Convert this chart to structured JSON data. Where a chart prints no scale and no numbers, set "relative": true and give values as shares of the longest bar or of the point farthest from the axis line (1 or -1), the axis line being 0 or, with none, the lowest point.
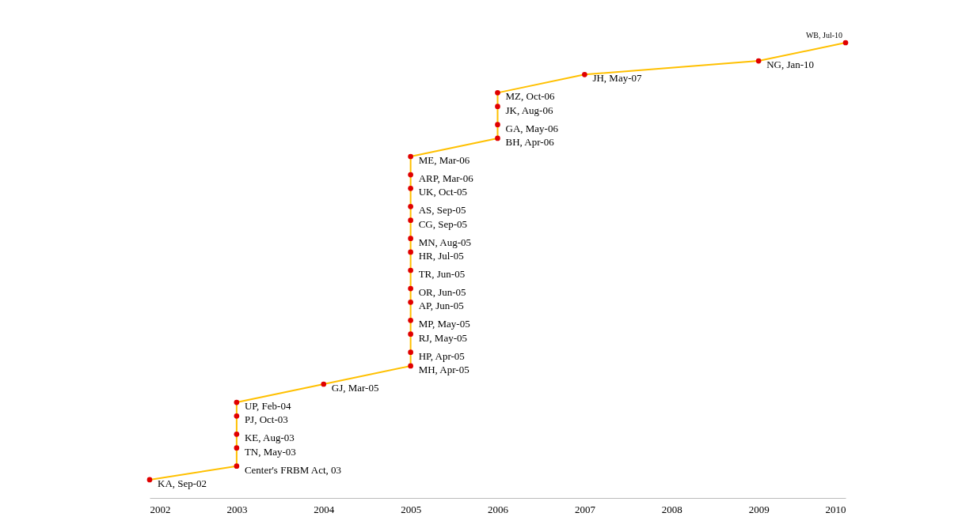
{
  "chart_data": {
    "type": "line",
    "relative": true,
    "xlim": [
      2002,
      2010
    ],
    "xticks": [
      2002,
      2003,
      2004,
      2005,
      2006,
      2007,
      2008,
      2009,
      2010
    ],
    "series": [
      {
        "color": "#ffc000",
        "marker": "none",
        "x": [
          2002,
          2003,
          2003,
          2003,
          2003,
          2003,
          2004,
          2005,
          2005,
          2005,
          2005,
          2005,
          2005,
          2005,
          2005,
          2005,
          2005,
          2005,
          2005,
          2005,
          2005,
          2006,
          2006,
          2006,
          2006,
          2007,
          2009,
          2010
        ],
        "values": [
          0.04,
          0.07,
          0.11,
          0.14,
          0.18,
          0.21,
          0.25,
          0.29,
          0.32,
          0.36,
          0.39,
          0.43,
          0.46,
          0.5,
          0.54,
          0.57,
          0.61,
          0.64,
          0.68,
          0.71,
          0.75,
          0.79,
          0.82,
          0.86,
          0.89,
          0.93,
          0.96,
          1
        ]
      },
      {
        "type": "scatter",
        "color": "#e00000",
        "marker": "circle",
        "x": [
          2002,
          2003,
          2003,
          2003,
          2003,
          2003,
          2004,
          2005,
          2005,
          2005,
          2005,
          2005,
          2005,
          2005,
          2005,
          2005,
          2005,
          2005,
          2005,
          2005,
          2005,
          2006,
          2006,
          2006,
          2006,
          2007,
          2009,
          2010
        ],
        "values": [
          0.04,
          0.07,
          0.11,
          0.14,
          0.18,
          0.21,
          0.25,
          0.29,
          0.32,
          0.36,
          0.39,
          0.43,
          0.46,
          0.5,
          0.54,
          0.57,
          0.61,
          0.64,
          0.68,
          0.71,
          0.75,
          0.79,
          0.82,
          0.86,
          0.89,
          0.93,
          0.96,
          1
        ]
      }
    ],
    "annotations": [
      {
        "text": "KA, Sep-02",
        "x": 2002,
        "y": 0.04
      },
      {
        "text": "Center's FRBM Act, 03",
        "x": 2003,
        "y": 0.07
      },
      {
        "text": "TN, May-03",
        "x": 2003,
        "y": 0.11
      },
      {
        "text": "KE, Aug-03",
        "x": 2003,
        "y": 0.14
      },
      {
        "text": "PJ, Oct-03",
        "x": 2003,
        "y": 0.18
      },
      {
        "text": "UP, Feb-04",
        "x": 2003,
        "y": 0.21
      },
      {
        "text": "GJ, Mar-05",
        "x": 2004,
        "y": 0.25
      },
      {
        "text": "MH, Apr-05",
        "x": 2005,
        "y": 0.29
      },
      {
        "text": "HP, Apr-05",
        "x": 2005,
        "y": 0.32
      },
      {
        "text": "RJ, May-05",
        "x": 2005,
        "y": 0.36
      },
      {
        "text": "MP, May-05",
        "x": 2005,
        "y": 0.39
      },
      {
        "text": "AP, Jun-05",
        "x": 2005,
        "y": 0.43
      },
      {
        "text": "OR, Jun-05",
        "x": 2005,
        "y": 0.46
      },
      {
        "text": "TR, Jun-05",
        "x": 2005,
        "y": 0.5
      },
      {
        "text": "HR, Jul-05",
        "x": 2005,
        "y": 0.54
      },
      {
        "text": "MN, Aug-05",
        "x": 2005,
        "y": 0.57
      },
      {
        "text": "CG, Sep-05",
        "x": 2005,
        "y": 0.61
      },
      {
        "text": "AS, Sep-05",
        "x": 2005,
        "y": 0.64
      },
      {
        "text": "UK, Oct-05",
        "x": 2005,
        "y": 0.68
      },
      {
        "text": "ARP, Mar-06",
        "x": 2005,
        "y": 0.71
      },
      {
        "text": "ME, Mar-06",
        "x": 2005,
        "y": 0.75
      },
      {
        "text": "BH, Apr-06",
        "x": 2006,
        "y": 0.79
      },
      {
        "text": "GA, May-06",
        "x": 2006,
        "y": 0.82
      },
      {
        "text": "JK, Aug-06",
        "x": 2006,
        "y": 0.86
      },
      {
        "text": "MZ, Oct-06",
        "x": 2006,
        "y": 0.89
      },
      {
        "text": "JH, May-07",
        "x": 2007,
        "y": 0.93
      },
      {
        "text": "NG, Jan-10",
        "x": 2009,
        "y": 0.96
      },
      {
        "text": "WB, Jul-10",
        "x": 2010,
        "y": 1
      }
    ]
  }
}
